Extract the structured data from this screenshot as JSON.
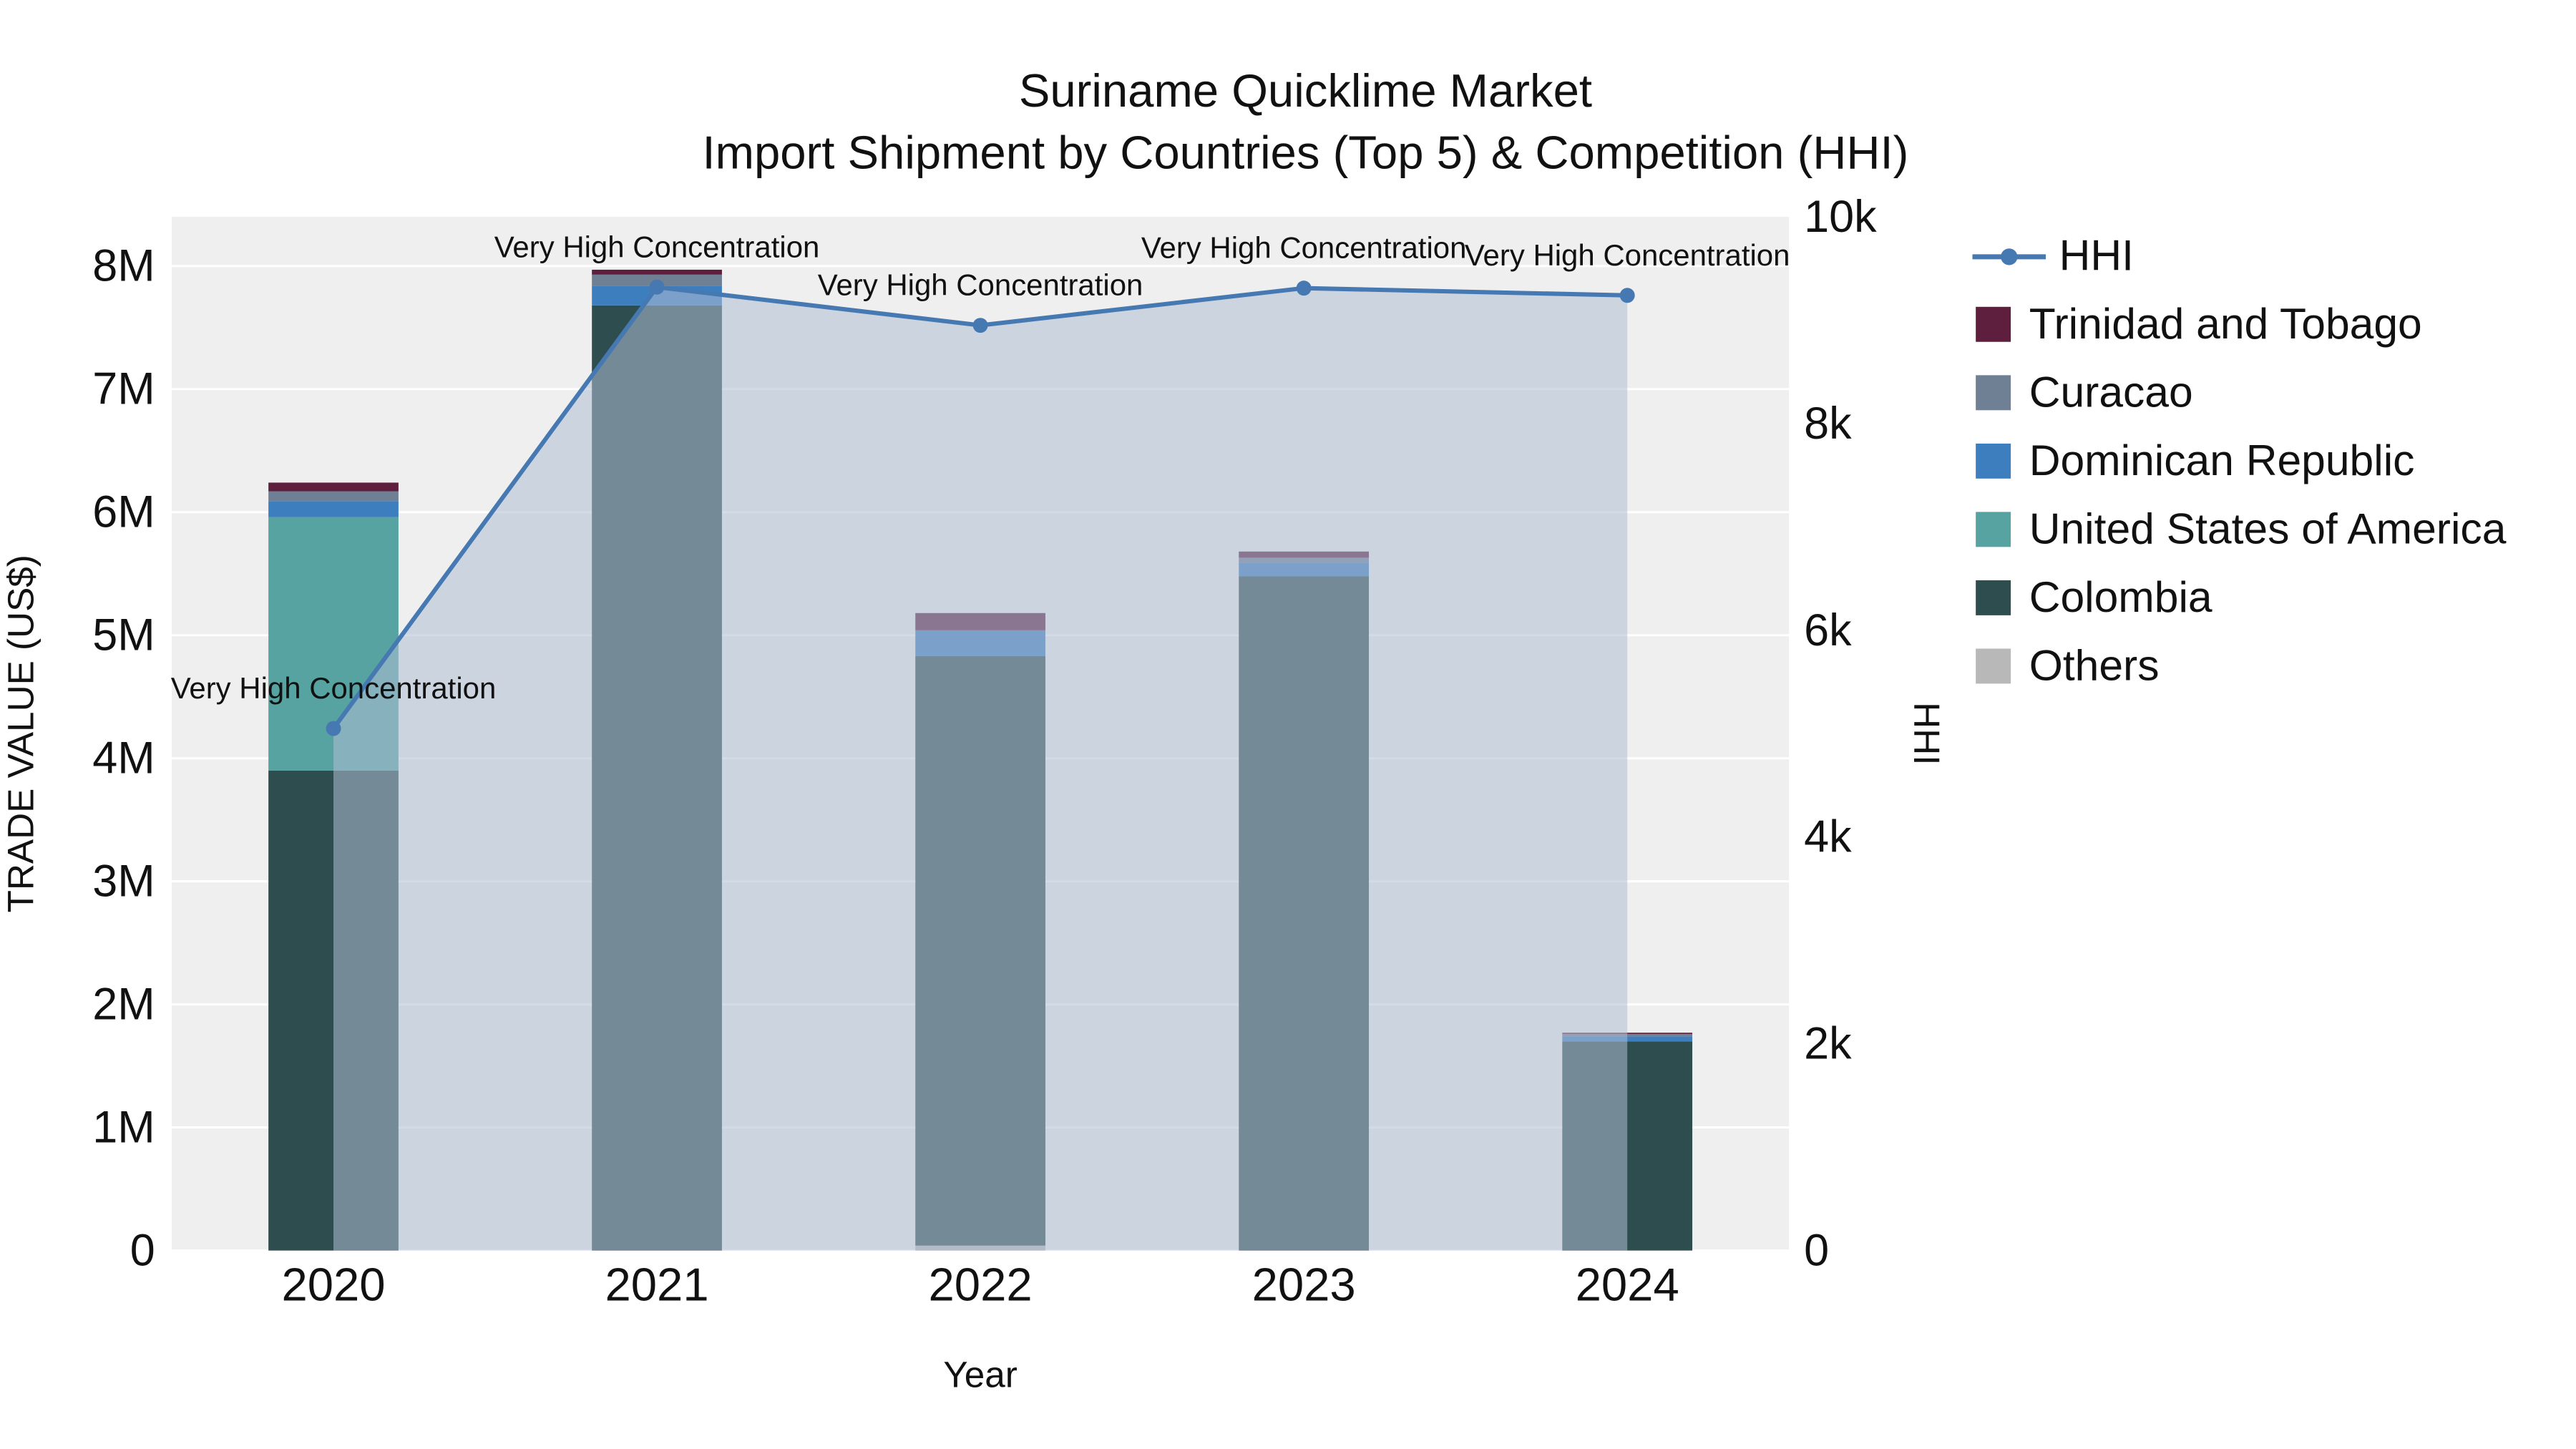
{
  "title": {
    "line1": "Suriname Quicklime Market",
    "line2": "Import Shipment by Countries (Top 5) & Competition (HHI)"
  },
  "axes": {
    "x_label": "Year",
    "left_label": "TRADE VALUE (US$)",
    "right_label": "HHI"
  },
  "colors": {
    "plot_background": "#efefef",
    "gridline": "#ffffff",
    "hhi_line": "#4679b2",
    "hhi_area_fill": "rgba(174,190,211,0.55)"
  },
  "chart_data": {
    "type": "bar",
    "subtype": "stacked-bar-with-line",
    "categories": [
      "2020",
      "2021",
      "2022",
      "2023",
      "2024"
    ],
    "left_axis": {
      "max": 8400000,
      "ticks": [
        {
          "value": 0,
          "label": "0"
        },
        {
          "value": 1000000,
          "label": "1M"
        },
        {
          "value": 2000000,
          "label": "2M"
        },
        {
          "value": 3000000,
          "label": "3M"
        },
        {
          "value": 4000000,
          "label": "4M"
        },
        {
          "value": 5000000,
          "label": "5M"
        },
        {
          "value": 6000000,
          "label": "6M"
        },
        {
          "value": 7000000,
          "label": "7M"
        },
        {
          "value": 8000000,
          "label": "8M"
        }
      ]
    },
    "right_axis": {
      "max": 10000,
      "ticks": [
        {
          "value": 0,
          "label": "0"
        },
        {
          "value": 2000,
          "label": "2k"
        },
        {
          "value": 4000,
          "label": "4k"
        },
        {
          "value": 6000,
          "label": "6k"
        },
        {
          "value": 8000,
          "label": "8k"
        },
        {
          "value": 10000,
          "label": "10k"
        }
      ]
    },
    "series": [
      {
        "name": "Others",
        "color": "#b8b8b8",
        "values": [
          0,
          0,
          40000,
          0,
          0
        ]
      },
      {
        "name": "Colombia",
        "color": "#2d4d4f",
        "values": [
          3900000,
          7680000,
          4790000,
          5480000,
          1700000
        ]
      },
      {
        "name": "United States of America",
        "color": "#57a3a1",
        "values": [
          2060000,
          0,
          0,
          0,
          0
        ]
      },
      {
        "name": "Dominican Republic",
        "color": "#3d7ebf",
        "values": [
          130000,
          160000,
          210000,
          110000,
          40000
        ]
      },
      {
        "name": "Curacao",
        "color": "#6f7f94",
        "values": [
          80000,
          90000,
          0,
          40000,
          20000
        ]
      },
      {
        "name": "Trinidad and Tobago",
        "color": "#5e1f3e",
        "values": [
          70000,
          40000,
          140000,
          50000,
          10000
        ]
      }
    ],
    "hhi": {
      "name": "HHI",
      "values": [
        5050,
        9320,
        8950,
        9310,
        9240
      ],
      "annotations": [
        "Very High Concentration",
        "Very High Concentration",
        "Very High Concentration",
        "Very High Concentration",
        "Very High Concentration"
      ]
    },
    "legend": [
      {
        "label": "HHI",
        "type": "line",
        "color": "#4679b2"
      },
      {
        "label": "Trinidad and Tobago",
        "type": "swatch",
        "color": "#5e1f3e"
      },
      {
        "label": "Curacao",
        "type": "swatch",
        "color": "#6f7f94"
      },
      {
        "label": "Dominican Republic",
        "type": "swatch",
        "color": "#3d7ebf"
      },
      {
        "label": "United States of America",
        "type": "swatch",
        "color": "#57a3a1"
      },
      {
        "label": "Colombia",
        "type": "swatch",
        "color": "#2d4d4f"
      },
      {
        "label": "Others",
        "type": "swatch",
        "color": "#b8b8b8"
      }
    ]
  }
}
